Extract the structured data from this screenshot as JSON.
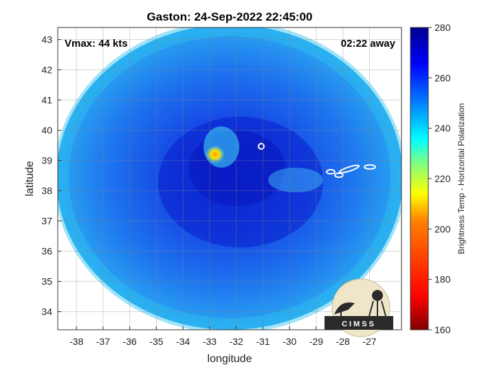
{
  "chart_data": {
    "type": "heatmap",
    "title": "Gaston: 24-Sep-2022 22:45:00",
    "xlabel": "longitude",
    "ylabel": "latitude",
    "xlim": [
      -38.7,
      -25.8
    ],
    "ylim": [
      33.4,
      43.4
    ],
    "x_ticks": [
      -38,
      -37,
      -36,
      -35,
      -34,
      -33,
      -32,
      -31,
      -30,
      -29,
      -28,
      -27
    ],
    "y_ticks": [
      34,
      35,
      36,
      37,
      38,
      39,
      40,
      41,
      42,
      43
    ],
    "grid": true,
    "annotations": {
      "vmax": "Vmax: 44 kts",
      "away": "02:22 away"
    },
    "colorbar": {
      "label": "Brightness Temp - Horizontal Polarization",
      "min": 160,
      "max": 280,
      "ticks": [
        160,
        180,
        200,
        220,
        240,
        260,
        280
      ],
      "colormap": [
        "#7f0000",
        "#ff0000",
        "#ff8000",
        "#ffff00",
        "#80ff80",
        "#00ffff",
        "#0080ff",
        "#0000ff",
        "#00008f"
      ]
    },
    "field": {
      "center_lon": -32.5,
      "center_lat": 38.5,
      "background_value": 250,
      "warm_spot": {
        "lon": -32.8,
        "lat": 39.2,
        "value": 205
      },
      "cold_band_value": 265
    }
  },
  "logo": {
    "text": "CIMSS"
  }
}
